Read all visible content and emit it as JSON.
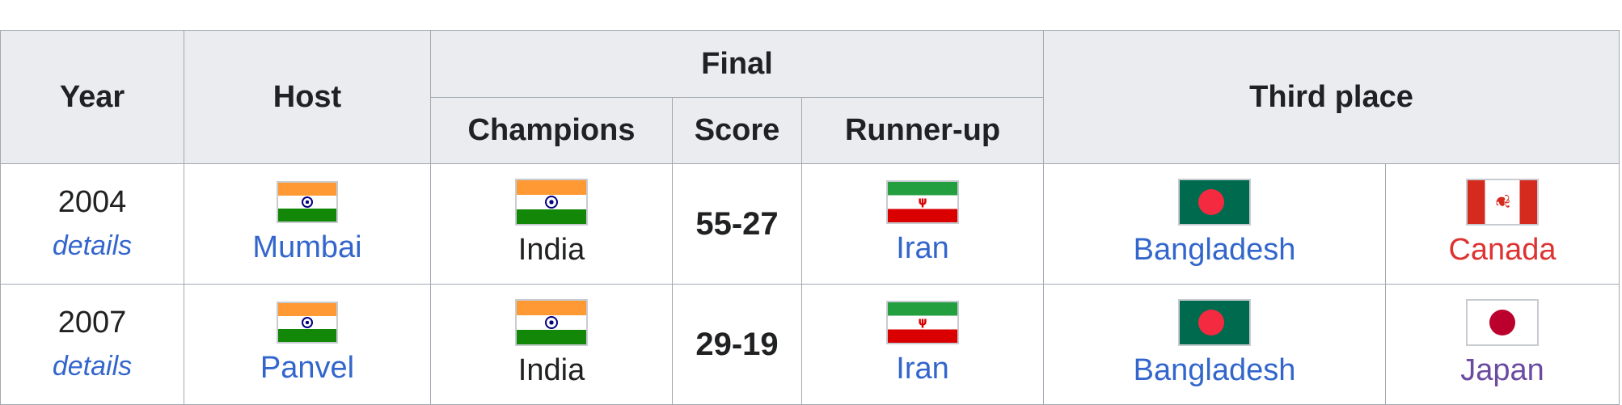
{
  "table": {
    "headers": {
      "year": "Year",
      "host": "Host",
      "final": "Final",
      "champions": "Champions",
      "score": "Score",
      "runner_up": "Runner-up",
      "third_place": "Third place"
    },
    "rows": [
      {
        "year": "2004",
        "details": "details",
        "host": {
          "name": "Mumbai",
          "flag": "india-flag-icon"
        },
        "champions": {
          "name": "India",
          "flag": "india-flag-icon"
        },
        "score": "55-27",
        "runner_up": {
          "name": "Iran",
          "flag": "iran-flag-icon"
        },
        "third_place": [
          {
            "name": "Bangladesh",
            "flag": "bangladesh-flag-icon"
          },
          {
            "name": "Canada",
            "flag": "canada-flag-icon"
          }
        ]
      },
      {
        "year": "2007",
        "details": "details",
        "host": {
          "name": "Panvel",
          "flag": "india-flag-icon"
        },
        "champions": {
          "name": "India",
          "flag": "india-flag-icon"
        },
        "score": "29-19",
        "runner_up": {
          "name": "Iran",
          "flag": "iran-flag-icon"
        },
        "third_place": [
          {
            "name": "Bangladesh",
            "flag": "bangladesh-flag-icon"
          },
          {
            "name": "Japan",
            "flag": "japan-flag-icon"
          }
        ]
      }
    ]
  },
  "colors": {
    "header_bg": "#eaecf0",
    "border": "#a2a9b1",
    "link": "#3366cc",
    "red_link": "#dd3333",
    "visited_link": "#6b4ba1",
    "text": "#202122"
  }
}
